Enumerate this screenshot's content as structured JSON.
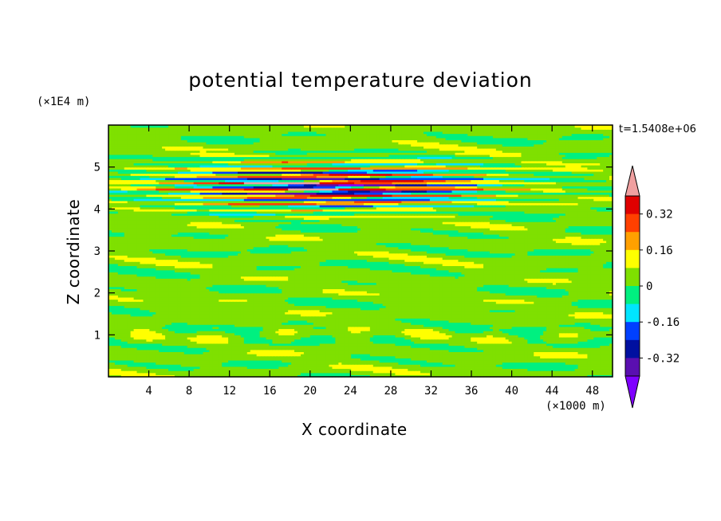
{
  "chart_data": {
    "type": "heatmap",
    "title": "potential temperature deviation",
    "xlabel": "X coordinate",
    "ylabel": "Z coordinate",
    "x_multiplier": "(×1000 m)",
    "y_multiplier": "(×1E4 m)",
    "time_label": "t=1.5408e+06",
    "xlim": [
      0,
      50
    ],
    "ylim": [
      0,
      6
    ],
    "x_ticks": [
      "4",
      "8",
      "12",
      "16",
      "20",
      "24",
      "28",
      "32",
      "36",
      "40",
      "44",
      "48"
    ],
    "y_ticks": [
      "1",
      "2",
      "3",
      "4",
      "5"
    ],
    "colorbar": {
      "labels": [
        "0.32",
        "0.16",
        "0",
        "-0.16",
        "-0.32"
      ],
      "colors": [
        "#7f00ff",
        "#5a0fb0",
        "#0010a0",
        "#0040ff",
        "#00e5ff",
        "#00f080",
        "#7fe000",
        "#ffff00",
        "#ffa000",
        "#ff4000",
        "#e00000",
        "#f0a0a0"
      ],
      "bounds": [
        -0.4,
        -0.32,
        -0.24,
        -0.16,
        -0.08,
        0,
        0.08,
        0.16,
        0.24,
        0.32,
        0.4
      ],
      "extend": "both"
    },
    "description_values": {
      "background_level": 0.04,
      "strong_layer_z_range": [
        3.8,
        5.3
      ]
    }
  }
}
